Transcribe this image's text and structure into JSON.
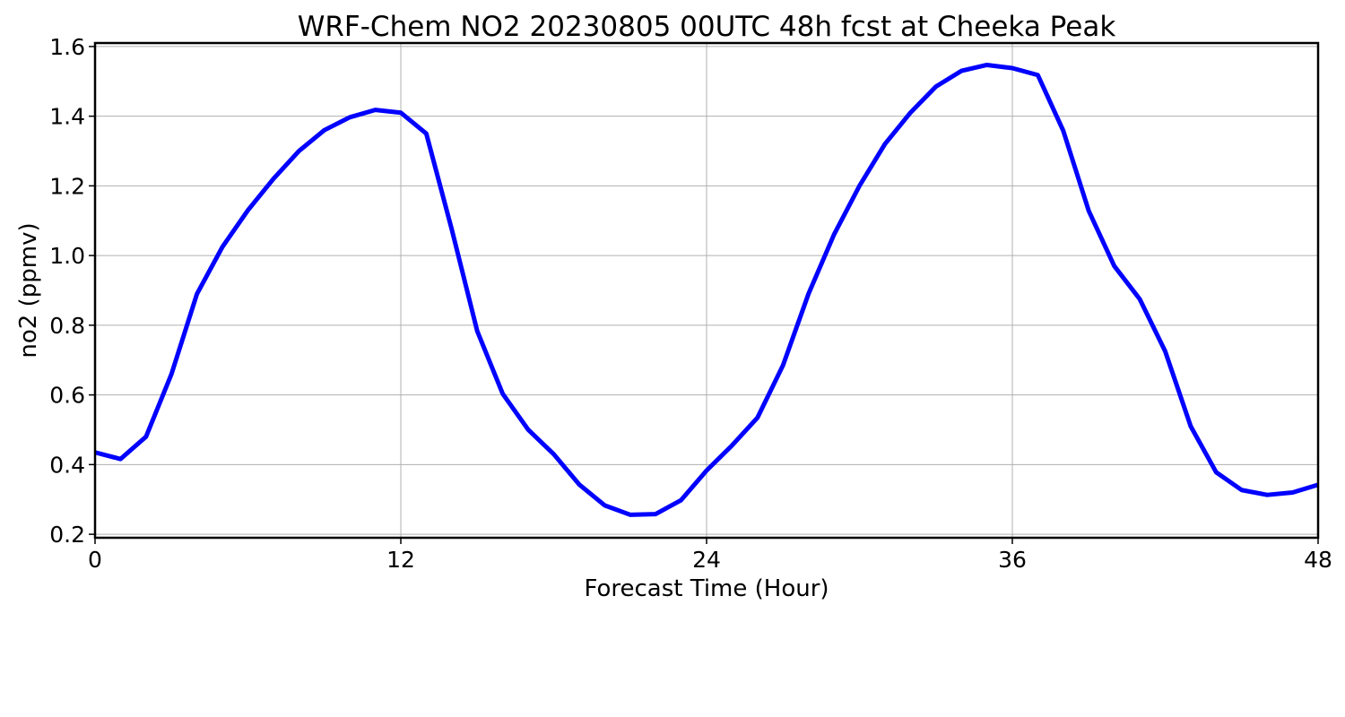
{
  "chart_data": {
    "type": "line",
    "title": "WRF-Chem NO2  20230805 00UTC 48h fcst at Cheeka Peak",
    "xlabel": "Forecast Time (Hour)",
    "ylabel": "no2  (ppmv)",
    "xlim": [
      0,
      48
    ],
    "ylim": [
      0.19,
      1.61
    ],
    "xticks": [
      0,
      12,
      24,
      36,
      48
    ],
    "yticks": [
      0.2,
      0.4,
      0.6,
      0.8,
      1.0,
      1.2,
      1.4,
      1.6
    ],
    "grid": true,
    "line_color": "#0000ff",
    "series": [
      {
        "x": [
          0,
          1,
          2,
          3,
          4,
          5,
          6,
          7,
          8,
          9,
          10,
          11,
          12,
          13,
          14,
          15,
          16,
          17,
          18,
          19,
          20,
          21,
          22,
          23,
          24,
          25,
          26,
          27,
          28,
          29,
          30,
          31,
          32,
          33,
          34,
          35,
          36,
          37,
          38,
          39,
          40,
          41,
          42,
          43,
          44,
          45,
          46,
          47,
          48
        ],
        "values": [
          0.435,
          0.416,
          0.48,
          0.66,
          0.89,
          1.025,
          1.13,
          1.22,
          1.3,
          1.36,
          1.397,
          1.418,
          1.41,
          1.35,
          1.075,
          0.783,
          0.603,
          0.5,
          0.43,
          0.343,
          0.283,
          0.256,
          0.258,
          0.298,
          0.383,
          0.455,
          0.535,
          0.685,
          0.89,
          1.06,
          1.2,
          1.32,
          1.41,
          1.485,
          1.53,
          1.547,
          1.538,
          1.518,
          1.358,
          1.128,
          0.97,
          0.875,
          0.725,
          0.51,
          0.378,
          0.327,
          0.313,
          0.32,
          0.342
        ]
      }
    ]
  }
}
